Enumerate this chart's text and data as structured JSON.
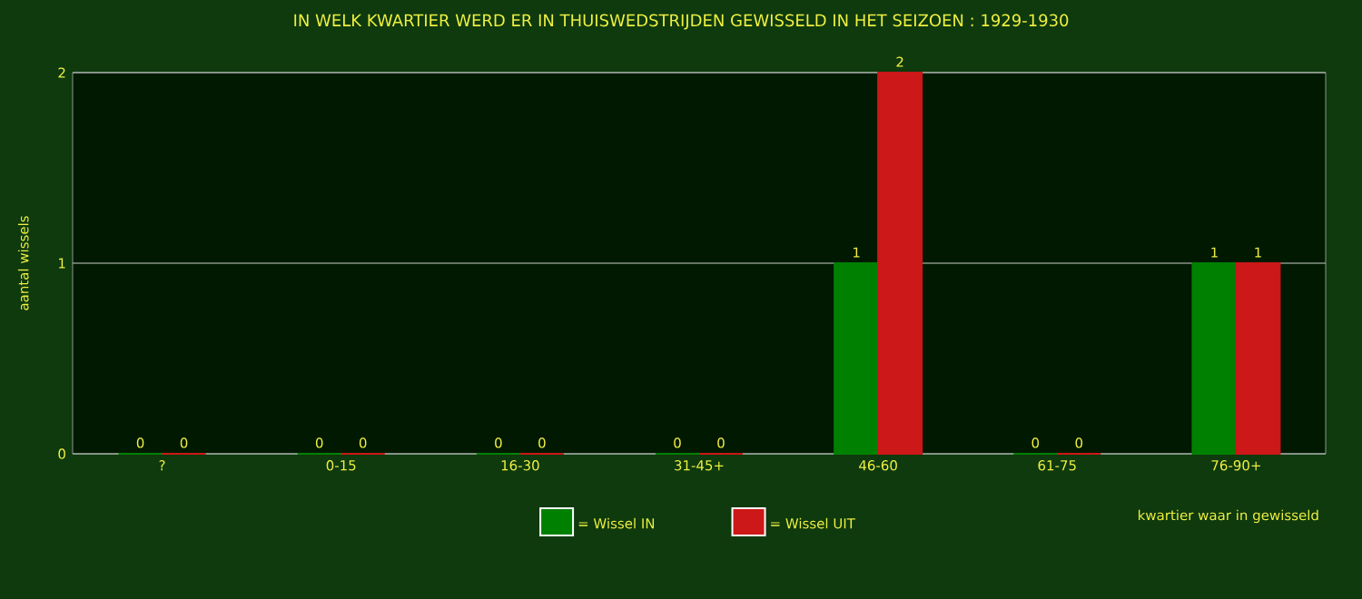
{
  "chart_data": {
    "type": "bar",
    "title": "IN WELK KWARTIER WERD ER IN THUISWEDSTRIJDEN GEWISSELD IN HET SEIZOEN : 1929-1930",
    "xlabel": "kwartier waar in gewisseld",
    "ylabel": "aantal wissels",
    "categories": [
      "?",
      "0-15",
      "16-30",
      "31-45+",
      "46-60",
      "61-75",
      "76-90+"
    ],
    "series": [
      {
        "name": "= Wissel IN",
        "color": "#008000",
        "values": [
          0,
          0,
          0,
          0,
          1,
          0,
          1
        ]
      },
      {
        "name": "= Wissel UIT",
        "color": "#cc1818",
        "values": [
          0,
          0,
          0,
          0,
          2,
          0,
          1
        ]
      }
    ],
    "ylim": [
      0,
      2
    ],
    "yticks": [
      0,
      1,
      2
    ],
    "grid": "y",
    "legend": "bottom",
    "data_labels": true
  }
}
